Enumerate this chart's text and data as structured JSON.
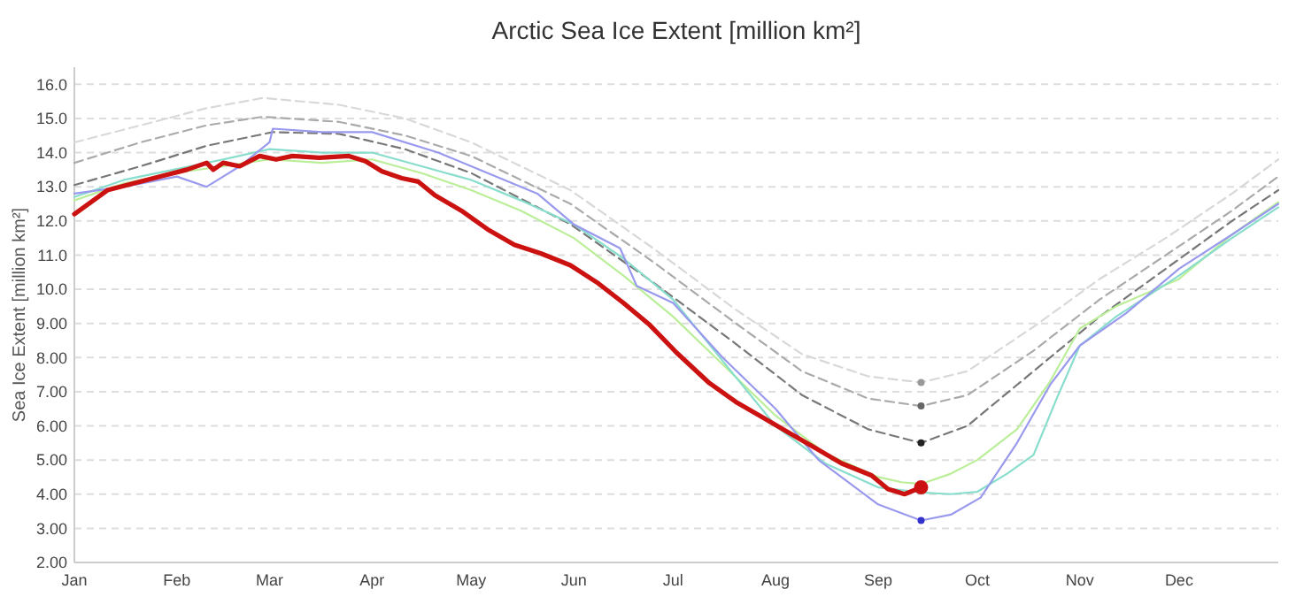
{
  "chart_data": {
    "type": "line",
    "title": "Arctic Sea Ice Extent [million km²]",
    "ylabel": "Sea Ice Extent [million km²]",
    "xlim": [
      "--01-01",
      "--12-31"
    ],
    "ylim": [
      2,
      16.5
    ],
    "xticks": [
      {
        "value": "--01-01",
        "label": "Jan"
      },
      {
        "value": "--02-01",
        "label": "Feb"
      },
      {
        "value": "--03-01",
        "label": "Mar"
      },
      {
        "value": "--04-01",
        "label": "Apr"
      },
      {
        "value": "--05-01",
        "label": "May"
      },
      {
        "value": "--06-01",
        "label": "Jun"
      },
      {
        "value": "--07-01",
        "label": "Jul"
      },
      {
        "value": "--08-01",
        "label": "Aug"
      },
      {
        "value": "--09-01",
        "label": "Sep"
      },
      {
        "value": "--10-01",
        "label": "Oct"
      },
      {
        "value": "--11-01",
        "label": "Nov"
      },
      {
        "value": "--12-01",
        "label": "Dec"
      }
    ],
    "yticks": [
      {
        "value": 2,
        "label": "2.00"
      },
      {
        "value": 3,
        "label": "3.00"
      },
      {
        "value": 4,
        "label": "4.00"
      },
      {
        "value": 5,
        "label": "5.00"
      },
      {
        "value": 6,
        "label": "6.00"
      },
      {
        "value": 7,
        "label": "7.00"
      },
      {
        "value": 8,
        "label": "8.00"
      },
      {
        "value": 9,
        "label": "9.00"
      },
      {
        "value": 10,
        "label": "10.0"
      },
      {
        "value": 11,
        "label": "11.0"
      },
      {
        "value": 12,
        "label": "12.0"
      },
      {
        "value": 13,
        "label": "13.0"
      },
      {
        "value": 14,
        "label": "14.0"
      },
      {
        "value": 15,
        "label": "15.0"
      },
      {
        "value": 16,
        "label": "16.0"
      }
    ],
    "grid": "y",
    "line_style": "solid",
    "series": [
      {
        "color": "#d8d8d8",
        "line_style": "dashed",
        "x": [
          "--01-01",
          "--01-21",
          "--02-10",
          "--02-27",
          "--03-22",
          "--04-11",
          "--05-01",
          "--05-31",
          "--06-25",
          "--07-20",
          "--08-09",
          "--08-29",
          "--09-14",
          "--09-28",
          "--10-18",
          "--11-07",
          "--11-27",
          "--12-17",
          "--12-31"
        ],
        "values": [
          14.3,
          14.8,
          15.3,
          15.6,
          15.4,
          15.0,
          14.3,
          12.9,
          11.2,
          9.4,
          8.1,
          7.45,
          7.27,
          7.6,
          8.9,
          10.3,
          11.5,
          12.8,
          13.8
        ]
      },
      {
        "color": "#aaaaaa",
        "line_style": "dashed",
        "x": [
          "--01-01",
          "--01-21",
          "--02-10",
          "--02-27",
          "--03-22",
          "--04-11",
          "--05-01",
          "--05-31",
          "--06-25",
          "--07-20",
          "--08-09",
          "--08-29",
          "--09-14",
          "--09-28",
          "--10-18",
          "--11-07",
          "--11-27",
          "--12-17",
          "--12-31"
        ],
        "values": [
          13.7,
          14.3,
          14.8,
          15.05,
          14.9,
          14.5,
          13.9,
          12.5,
          10.8,
          9.0,
          7.6,
          6.8,
          6.58,
          6.9,
          8.2,
          9.7,
          11.0,
          12.3,
          13.3
        ]
      },
      {
        "color": "#777777",
        "line_style": "dashed",
        "x": [
          "--01-01",
          "--01-21",
          "--02-10",
          "--03-02",
          "--03-22",
          "--04-11",
          "--05-01",
          "--05-31",
          "--06-25",
          "--07-20",
          "--08-09",
          "--08-29",
          "--09-14",
          "--09-28",
          "--10-18",
          "--11-07",
          "--11-27",
          "--12-17",
          "--12-31"
        ],
        "values": [
          13.05,
          13.6,
          14.2,
          14.6,
          14.55,
          14.1,
          13.4,
          11.9,
          10.2,
          8.4,
          6.9,
          5.9,
          5.5,
          6.0,
          7.6,
          9.2,
          10.6,
          12.0,
          12.9
        ]
      },
      {
        "color": "#bbee99",
        "x": [
          "--01-01",
          "--01-16",
          "--01-31",
          "--02-15",
          "--03-01",
          "--03-17",
          "--04-01",
          "--04-16",
          "--05-01",
          "--05-16",
          "--06-01",
          "--06-16",
          "--07-01",
          "--07-16",
          "--08-01",
          "--08-16",
          "--09-01",
          "--09-08",
          "--09-14",
          "--09-23",
          "--10-01",
          "--10-13",
          "--10-23",
          "--11-01",
          "--11-12",
          "--12-01",
          "--12-17",
          "--12-31"
        ],
        "values": [
          12.6,
          13.1,
          13.4,
          13.6,
          13.8,
          13.7,
          13.8,
          13.4,
          12.9,
          12.3,
          11.5,
          10.4,
          9.2,
          7.8,
          6.3,
          5.2,
          4.5,
          4.35,
          4.3,
          4.6,
          5.0,
          5.9,
          7.3,
          8.85,
          9.5,
          10.3,
          11.6,
          12.55
        ]
      },
      {
        "color": "#88ddcc",
        "x": [
          "--01-01",
          "--01-16",
          "--01-31",
          "--02-15",
          "--03-01",
          "--03-17",
          "--04-01",
          "--04-16",
          "--05-01",
          "--05-16",
          "--06-01",
          "--06-16",
          "--07-01",
          "--07-16",
          "--08-01",
          "--08-16",
          "--09-01",
          "--09-14",
          "--09-23",
          "--10-01",
          "--10-10",
          "--10-18",
          "--10-25",
          "--11-01",
          "--11-12",
          "--12-01",
          "--12-17",
          "--12-31"
        ],
        "values": [
          12.7,
          13.2,
          13.5,
          13.8,
          14.1,
          14.0,
          14.0,
          13.6,
          13.2,
          12.6,
          11.9,
          10.9,
          9.7,
          7.9,
          6.0,
          4.9,
          4.2,
          4.05,
          4.0,
          4.07,
          4.6,
          5.15,
          6.8,
          8.35,
          9.2,
          10.4,
          11.5,
          12.4
        ]
      },
      {
        "color": "#9999ee",
        "x": [
          "--01-01",
          "--01-16",
          "--02-01",
          "--02-10",
          "--02-20",
          "--03-01",
          "--03-02",
          "--03-17",
          "--04-01",
          "--04-21",
          "--05-01",
          "--05-21",
          "--06-01",
          "--06-15",
          "--06-20",
          "--07-01",
          "--07-16",
          "--08-01",
          "--08-14",
          "--09-01",
          "--09-14",
          "--09-23",
          "--10-02",
          "--10-13",
          "--10-23",
          "--11-01",
          "--11-15",
          "--12-01",
          "--12-17",
          "--12-31"
        ],
        "values": [
          12.8,
          13.0,
          13.3,
          13.0,
          13.6,
          14.3,
          14.7,
          14.6,
          14.6,
          14.0,
          13.6,
          12.8,
          11.9,
          11.2,
          10.1,
          9.6,
          8.0,
          6.5,
          5.0,
          3.7,
          3.23,
          3.4,
          3.9,
          5.5,
          7.2,
          8.35,
          9.3,
          10.6,
          11.6,
          12.5
        ]
      },
      {
        "color": "#cc1111",
        "x": [
          "--01-01",
          "--01-06",
          "--01-11",
          "--01-19",
          "--01-27",
          "--02-04",
          "--02-10",
          "--02-12",
          "--02-15",
          "--02-20",
          "--02-26",
          "--03-03",
          "--03-08",
          "--03-16",
          "--03-25",
          "--03-30",
          "--04-04",
          "--04-10",
          "--04-15",
          "--04-20",
          "--04-28",
          "--05-06",
          "--05-14",
          "--05-22",
          "--05-31",
          "--06-08",
          "--06-16",
          "--06-24",
          "--07-02",
          "--07-12",
          "--07-20",
          "--07-28",
          "--08-05",
          "--08-13",
          "--08-21",
          "--08-30",
          "--09-04",
          "--09-09",
          "--09-14"
        ],
        "values": [
          12.2,
          12.55,
          12.9,
          13.1,
          13.3,
          13.5,
          13.7,
          13.5,
          13.7,
          13.6,
          13.9,
          13.8,
          13.9,
          13.85,
          13.9,
          13.75,
          13.45,
          13.25,
          13.15,
          12.75,
          12.3,
          11.75,
          11.3,
          11.05,
          10.7,
          10.2,
          9.6,
          8.95,
          8.15,
          7.25,
          6.7,
          6.25,
          5.8,
          5.35,
          4.9,
          4.55,
          4.15,
          4.0,
          4.2
        ]
      },
      {
        "type": "scatter",
        "color": "#999999",
        "x": [
          "--09-14"
        ],
        "values": [
          7.27
        ]
      },
      {
        "type": "scatter",
        "color": "#666666",
        "x": [
          "--09-14"
        ],
        "values": [
          6.58
        ]
      },
      {
        "type": "scatter",
        "color": "#222222",
        "x": [
          "--09-14"
        ],
        "values": [
          5.5
        ]
      },
      {
        "type": "scatter",
        "color": "#3333cc",
        "x": [
          "--09-14"
        ],
        "values": [
          3.23
        ]
      },
      {
        "type": "scatter",
        "color": "#cc1111",
        "x": [
          "--09-14"
        ],
        "values": [
          4.2
        ]
      }
    ]
  }
}
